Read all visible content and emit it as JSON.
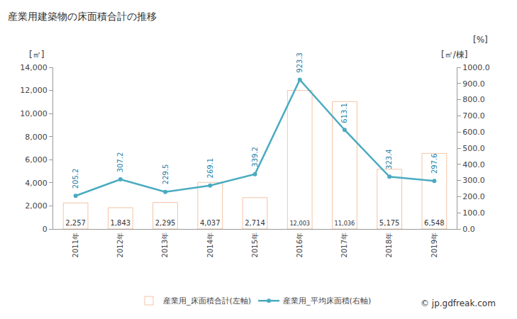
{
  "chart_data": {
    "type": "bar",
    "title": "産業用建築物の床面積合計の推移",
    "ylabel": "[㎡]",
    "y2label": "[㎡/棟]",
    "annotations": [
      "[%]",
      "© jp.gdfreak.com"
    ],
    "categories": [
      "2011年",
      "2012年",
      "2013年",
      "2014年",
      "2015年",
      "2016年",
      "2017年",
      "2018年",
      "2019年"
    ],
    "series": [
      {
        "name": "産業用_床面積合計(左軸)",
        "type": "bar",
        "color": "#f5a76a",
        "values": [
          2257,
          1843,
          2295,
          4037,
          2714,
          12003,
          11036,
          5175,
          6548
        ],
        "value_labels": [
          "2,257",
          "1,843",
          "2,295",
          "4,037",
          "2,714",
          "12,003",
          "11,036",
          "5,175",
          "6,548"
        ]
      },
      {
        "name": "産業用_平均床面積(右軸)",
        "type": "line",
        "color": "#4aabc0",
        "axis": "y2",
        "marker": "circle",
        "values": [
          205.2,
          307.2,
          229.5,
          269.1,
          339.2,
          923.3,
          613.1,
          323.4,
          297.6
        ]
      }
    ],
    "ylim": [
      0,
      14000
    ],
    "yticks": [
      0,
      {
        "value": 2000,
        "label": "2,000"
      },
      {
        "value": 4000,
        "label": "4,000"
      },
      {
        "value": 6000,
        "label": "6,000"
      },
      {
        "value": 8000,
        "label": "8,000"
      },
      {
        "value": 10000,
        "label": "10,000"
      },
      {
        "value": 12000,
        "label": "12,000"
      },
      {
        "value": 14000,
        "label": "14,000"
      }
    ],
    "y2lim": [
      0,
      1000
    ],
    "y2ticks": [
      {
        "value": 0,
        "label": "0.0"
      },
      {
        "value": 100,
        "label": "100.0"
      },
      {
        "value": 200,
        "label": "200.0"
      },
      {
        "value": 300,
        "label": "300.0"
      },
      {
        "value": 400,
        "label": "400.0"
      },
      {
        "value": 500,
        "label": "500.0"
      },
      {
        "value": 600,
        "label": "600.0"
      },
      {
        "value": 700,
        "label": "700.0"
      },
      {
        "value": 800,
        "label": "800.0"
      },
      {
        "value": 900,
        "label": "900.0"
      },
      {
        "value": 1000,
        "label": "1000.0"
      }
    ],
    "grid": false,
    "data_labels": true,
    "legend": "bottom"
  }
}
